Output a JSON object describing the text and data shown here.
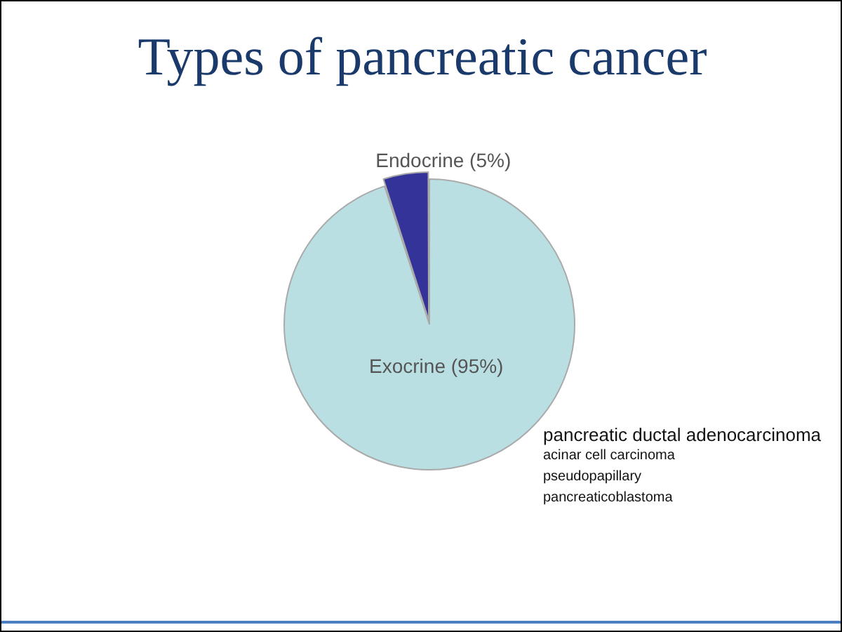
{
  "chart_data": {
    "type": "pie",
    "title": "Types of pancreatic cancer",
    "categories": [
      "Exocrine (95%)",
      "Endocrine (5%)"
    ],
    "values": [
      95,
      5
    ],
    "colors": [
      "#badfe3",
      "#333399"
    ],
    "annotations": [
      "pancreatic ductal adenocarcinoma",
      "acinar cell carcinoma",
      "pseudopapillary",
      "pancreaticoblastoma"
    ],
    "legend": false
  }
}
